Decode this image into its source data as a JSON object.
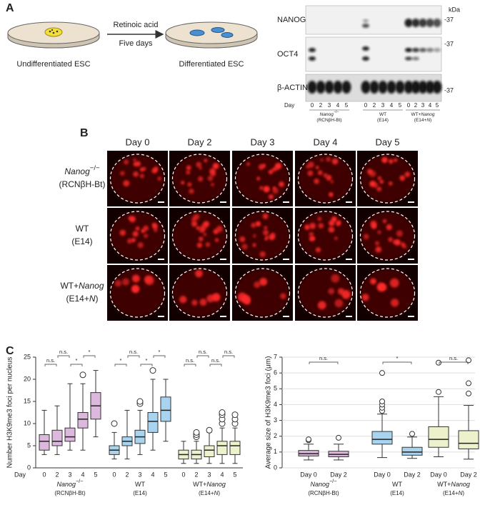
{
  "panel_labels": [
    "A",
    "B",
    "C"
  ],
  "diagram": {
    "treatment": [
      "Retinoic acid",
      "Five days"
    ],
    "left_label": "Undifferentiated ESC",
    "right_label": "Differentiated ESC"
  },
  "groups": [
    {
      "name": [
        {
          "t": "Nanog",
          "i": true
        },
        {
          "t": "−/−",
          "sup": true
        }
      ],
      "sub": [
        {
          "t": "(RCNβH-Bt)"
        }
      ]
    },
    {
      "name": [
        {
          "t": "WT"
        }
      ],
      "sub": [
        {
          "t": "(E14)"
        }
      ]
    },
    {
      "name": [
        {
          "t": "WT+"
        },
        {
          "t": "Nanog",
          "i": true
        }
      ],
      "sub": [
        {
          "t": "(E14+"
        },
        {
          "t": "N",
          "i": true
        },
        {
          "t": ")"
        }
      ]
    }
  ],
  "western": {
    "unit": "kDa",
    "proteins": [
      "NANOG",
      "OCT4",
      "β-ACTIN"
    ],
    "markers": [
      "-37",
      "-37",
      "-37"
    ],
    "day_label": "Day",
    "days": [
      "0",
      "2",
      "3",
      "4",
      "5"
    ]
  },
  "microscopy": {
    "columns": [
      "Day 0",
      "Day 2",
      "Day 3",
      "Day 4",
      "Day 5"
    ]
  },
  "chart_data": [
    {
      "type": "box",
      "y_label": "Number H3K9me3 foci per nucleus",
      "day_label": "Day",
      "ylim": [
        0,
        25
      ],
      "yticks": [
        0,
        5,
        10,
        15,
        20,
        25
      ],
      "grid": false,
      "categories": [
        "0",
        "2",
        "3",
        "4",
        "5"
      ],
      "series": [
        {
          "color": "#dcb8dc",
          "significance": [
            "n.s.",
            "n.s.",
            "*",
            "*"
          ],
          "boxes": [
            {
              "low": 3,
              "q1": 4,
              "median": 6,
              "q3": 7.5,
              "high": 13,
              "outliers": []
            },
            {
              "low": 3,
              "q1": 5,
              "median": 6,
              "q3": 8.5,
              "high": 14,
              "outliers": []
            },
            {
              "low": 4,
              "q1": 6,
              "median": 7,
              "q3": 9,
              "high": 19,
              "outliers": []
            },
            {
              "low": 4,
              "q1": 9,
              "median": 11,
              "q3": 12.5,
              "high": 19,
              "outliers": [
                21
              ]
            },
            {
              "low": 7,
              "q1": 11,
              "median": 14,
              "q3": 17,
              "high": 22,
              "outliers": []
            }
          ]
        },
        {
          "color": "#a9d4ef",
          "significance": [
            "*",
            "n.s.",
            "*",
            "*"
          ],
          "boxes": [
            {
              "low": 2,
              "q1": 3,
              "median": 4,
              "q3": 5,
              "high": 8,
              "outliers": [
                10
              ]
            },
            {
              "low": 2,
              "q1": 5,
              "median": 6,
              "q3": 7,
              "high": 13,
              "outliers": []
            },
            {
              "low": 3,
              "q1": 5.5,
              "median": 7,
              "q3": 8.5,
              "high": 13,
              "outliers": [
                14.5,
                15
              ]
            },
            {
              "low": 4,
              "q1": 8,
              "median": 10.5,
              "q3": 12.5,
              "high": 20,
              "outliers": [
                22
              ]
            },
            {
              "low": 6,
              "q1": 10.5,
              "median": 13,
              "q3": 16,
              "high": 20,
              "outliers": []
            }
          ]
        },
        {
          "color": "#eef2cc",
          "significance": [
            "n.s.",
            "n.s.",
            "n.s.",
            "n.s."
          ],
          "boxes": [
            {
              "low": 1,
              "q1": 2,
              "median": 3,
              "q3": 4,
              "high": 6,
              "outliers": []
            },
            {
              "low": 1,
              "q1": 2,
              "median": 3,
              "q3": 4,
              "high": 6,
              "outliers": [
                7,
                7.5,
                8
              ]
            },
            {
              "low": 1,
              "q1": 2.5,
              "median": 4,
              "q3": 5,
              "high": 8,
              "outliers": [
                8.5
              ]
            },
            {
              "low": 1,
              "q1": 3,
              "median": 5,
              "q3": 6,
              "high": 9,
              "outliers": [
                10,
                11,
                12,
                12.5
              ]
            },
            {
              "low": 1,
              "q1": 3,
              "median": 5,
              "q3": 6,
              "high": 9,
              "outliers": [
                10,
                11,
                12
              ]
            }
          ]
        }
      ]
    },
    {
      "type": "box",
      "y_label": "Average size of H3K9me3 foci (μm)",
      "ylim": [
        0,
        7
      ],
      "yticks": [
        0,
        1,
        2,
        3,
        4,
        5,
        6,
        7
      ],
      "grid": true,
      "categories": [
        "Day 0",
        "Day 2"
      ],
      "series": [
        {
          "color": "#dcb8dc",
          "significance": [
            "n.s."
          ],
          "boxes": [
            {
              "low": 0.5,
              "q1": 0.75,
              "median": 0.9,
              "q3": 1.1,
              "high": 1.5,
              "outliers": [
                1.75,
                1.8
              ]
            },
            {
              "low": 0.5,
              "q1": 0.7,
              "median": 0.85,
              "q3": 1.05,
              "high": 1.5,
              "outliers": [
                1.9
              ]
            }
          ]
        },
        {
          "color": "#a9d4ef",
          "significance": [
            "*"
          ],
          "boxes": [
            {
              "low": 0.65,
              "q1": 1.5,
              "median": 1.8,
              "q3": 2.3,
              "high": 3.4,
              "outliers": [
                3.6,
                3.8,
                4.0,
                4.2,
                6.0
              ]
            },
            {
              "low": 0.6,
              "q1": 0.8,
              "median": 1.0,
              "q3": 1.3,
              "high": 1.95,
              "outliers": [
                2.15
              ]
            }
          ]
        },
        {
          "color": "#eef2cc",
          "significance": [
            "n.s."
          ],
          "boxes": [
            {
              "low": 0.7,
              "q1": 1.3,
              "median": 1.8,
              "q3": 2.6,
              "high": 4.5,
              "outliers": [
                4.8,
                6.65
              ]
            },
            {
              "low": 0.55,
              "q1": 1.2,
              "median": 1.55,
              "q3": 2.35,
              "high": 3.95,
              "outliers": [
                4.7,
                5.35,
                6.8
              ]
            }
          ]
        }
      ]
    }
  ]
}
